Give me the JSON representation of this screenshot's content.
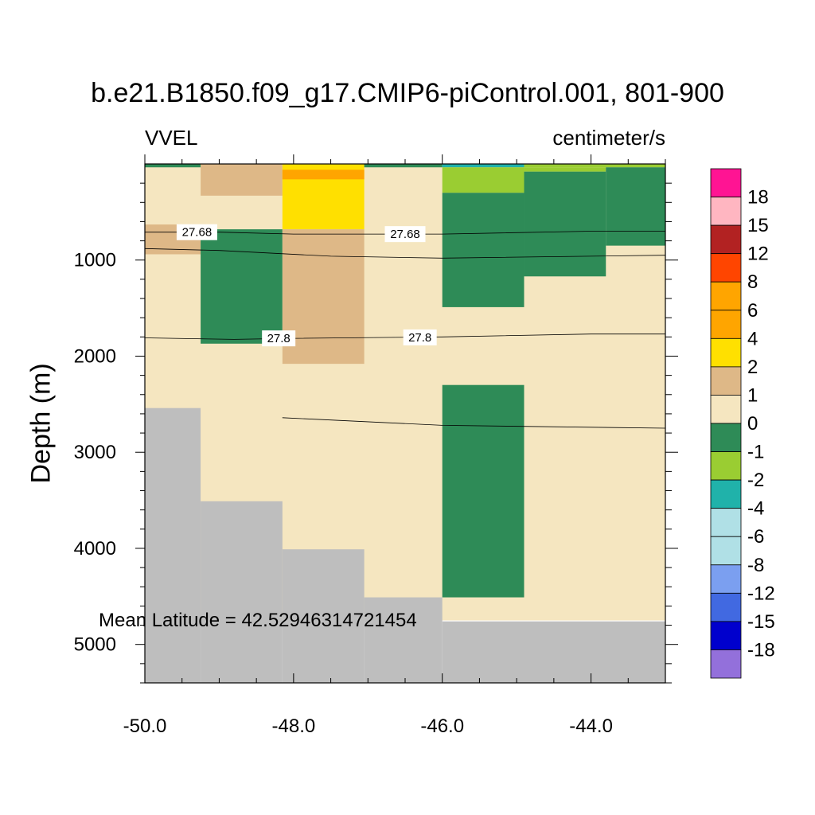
{
  "chart_data": {
    "type": "heatmap",
    "title": "b.e21.B1850.f09_g17.CMIP6-piControl.001, 801-900",
    "left_string": "VVEL",
    "right_string": "centimeter/s",
    "xlabel": "",
    "ylabel": "Depth (m)",
    "xlim": [
      -50.0,
      -43.0
    ],
    "ylim": [
      0,
      5400
    ],
    "y_reversed": true,
    "x_tick_labels": [
      "-50.0",
      "-48.0",
      "-46.0",
      "-44.0"
    ],
    "x_ticks": [
      -50,
      -48,
      -46,
      -44
    ],
    "y_tick_labels": [
      "1000",
      "2000",
      "3000",
      "4000",
      "5000"
    ],
    "y_ticks": [
      1000,
      2000,
      3000,
      4000,
      5000
    ],
    "annotation": "Mean Latitude = 42.52946314721454",
    "missing_color": "#bebebe",
    "colorbar": {
      "labels": [
        "18",
        "15",
        "12",
        "8",
        "6",
        "4",
        "2",
        "1",
        "0",
        "-1",
        "-2",
        "-4",
        "-6",
        "-8",
        "-12",
        "-15",
        "-18"
      ],
      "colors": [
        "#ff1493",
        "#ffb6c1",
        "#b22222",
        "#ff4500",
        "#ffa500",
        "#ffa500",
        "#ffe000",
        "#deb887",
        "#f5e6c0",
        "#2e8b57",
        "#9acd32",
        "#20b2aa",
        "#b0e0e6",
        "#b0e0e6",
        "#7b9ff0",
        "#4169e1",
        "#0000cd",
        "#9370db"
      ]
    },
    "cells": [
      {
        "x0": -50.0,
        "x1": -43.0,
        "d0": 0,
        "d1": 4750,
        "value": 0.5
      },
      {
        "x0": -50.0,
        "x1": -49.25,
        "d0": 0,
        "d1": 35,
        "value": -0.5
      },
      {
        "x0": -49.25,
        "x1": -48.15,
        "d0": 0,
        "d1": 330,
        "value": 1.5
      },
      {
        "x0": -48.15,
        "x1": -47.05,
        "d0": 0,
        "d1": 680,
        "value": 3
      },
      {
        "x0": -48.15,
        "x1": -47.05,
        "d0": 60,
        "d1": 160,
        "value": 5
      },
      {
        "x0": -47.05,
        "x1": -46.0,
        "d0": 0,
        "d1": 35,
        "value": -0.5
      },
      {
        "x0": -46.0,
        "x1": -44.9,
        "d0": 0,
        "d1": 35,
        "value": -3
      },
      {
        "x0": -46.0,
        "x1": -44.9,
        "d0": 35,
        "d1": 300,
        "value": -1.5
      },
      {
        "x0": -44.9,
        "x1": -43.0,
        "d0": 0,
        "d1": 35,
        "value": -1.5
      },
      {
        "x0": -44.9,
        "x1": -43.8,
        "d0": 35,
        "d1": 80,
        "value": -1.5
      },
      {
        "x0": -46.0,
        "x1": -44.9,
        "d0": 300,
        "d1": 1490,
        "value": -0.5
      },
      {
        "x0": -44.9,
        "x1": -43.8,
        "d0": 80,
        "d1": 1170,
        "value": -0.5
      },
      {
        "x0": -43.8,
        "x1": -43.0,
        "d0": 35,
        "d1": 850,
        "value": -0.5
      },
      {
        "x0": -50.0,
        "x1": -49.25,
        "d0": 630,
        "d1": 940,
        "value": 1.5
      },
      {
        "x0": -49.25,
        "x1": -48.15,
        "d0": 680,
        "d1": 1870,
        "value": -0.5
      },
      {
        "x0": -48.15,
        "x1": -47.05,
        "d0": 680,
        "d1": 2080,
        "value": 1.5
      },
      {
        "x0": -46.0,
        "x1": -44.9,
        "d0": 2300,
        "d1": 4510,
        "value": -0.5
      }
    ],
    "missing_regions": [
      {
        "x0": -50.0,
        "x1": -49.25,
        "d0": 2540,
        "d1": 5400
      },
      {
        "x0": -49.25,
        "x1": -48.15,
        "d0": 3510,
        "d1": 5400
      },
      {
        "x0": -48.15,
        "x1": -47.05,
        "d0": 4010,
        "d1": 5400
      },
      {
        "x0": -47.05,
        "x1": -46.0,
        "d0": 4510,
        "d1": 5400
      },
      {
        "x0": -46.0,
        "x1": -43.0,
        "d0": 4760,
        "d1": 5400
      }
    ],
    "contours": [
      {
        "label": "27.68",
        "points": [
          [
            -50.0,
            710
          ],
          [
            -49.0,
            710
          ],
          [
            -48.0,
            730
          ],
          [
            -46.0,
            730
          ],
          [
            -44.0,
            700
          ],
          [
            -43.0,
            700
          ]
        ],
        "label_positions": [
          [
            -49.3,
            710
          ],
          [
            -46.5,
            730
          ]
        ]
      },
      {
        "label": "",
        "points": [
          [
            -50.0,
            880
          ],
          [
            -49.0,
            900
          ],
          [
            -47.5,
            960
          ],
          [
            -46.0,
            980
          ],
          [
            -44.0,
            960
          ],
          [
            -43.0,
            950
          ]
        ],
        "label_positions": []
      },
      {
        "label": "27.8",
        "points": [
          [
            -50.0,
            1810
          ],
          [
            -48.8,
            1825
          ],
          [
            -48.0,
            1815
          ],
          [
            -46.0,
            1800
          ],
          [
            -44.0,
            1770
          ],
          [
            -43.0,
            1770
          ]
        ],
        "label_positions": [
          [
            -48.2,
            1815
          ],
          [
            -46.3,
            1805
          ]
        ]
      },
      {
        "label": "",
        "points": [
          [
            -48.15,
            2640
          ],
          [
            -46.0,
            2720
          ],
          [
            -44.0,
            2740
          ],
          [
            -43.0,
            2750
          ]
        ],
        "label_positions": []
      }
    ]
  }
}
